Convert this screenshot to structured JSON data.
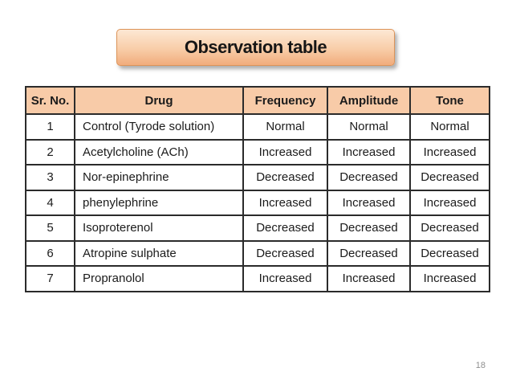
{
  "slide": {
    "title": "Observation table",
    "page_number": "18",
    "colors": {
      "title_gradient_top": "#FDE8D4",
      "title_gradient_bottom": "#F1AC7C",
      "title_border": "#DD9459",
      "table_header_bg": "#F8CBA8",
      "table_border": "#2B2B2B",
      "page_number_gray": "#8F8F8F"
    }
  },
  "table": {
    "columns": [
      "Sr. No.",
      "Drug",
      "Frequency",
      "Amplitude",
      "Tone"
    ],
    "rows": [
      [
        "1",
        "Control (Tyrode solution)",
        "Normal",
        "Normal",
        "Normal"
      ],
      [
        "2",
        "Acetylcholine (ACh)",
        "Increased",
        "Increased",
        "Increased"
      ],
      [
        "3",
        "Nor-epinephrine",
        "Decreased",
        "Decreased",
        "Decreased"
      ],
      [
        "4",
        "phenylephrine",
        "Increased",
        "Increased",
        "Increased"
      ],
      [
        "5",
        "Isoproterenol",
        "Decreased",
        "Decreased",
        "Decreased"
      ],
      [
        "6",
        "Atropine sulphate",
        "Decreased",
        "Decreased",
        "Decreased"
      ],
      [
        "7",
        "Propranolol",
        "Increased",
        "Increased",
        "Increased"
      ]
    ]
  }
}
